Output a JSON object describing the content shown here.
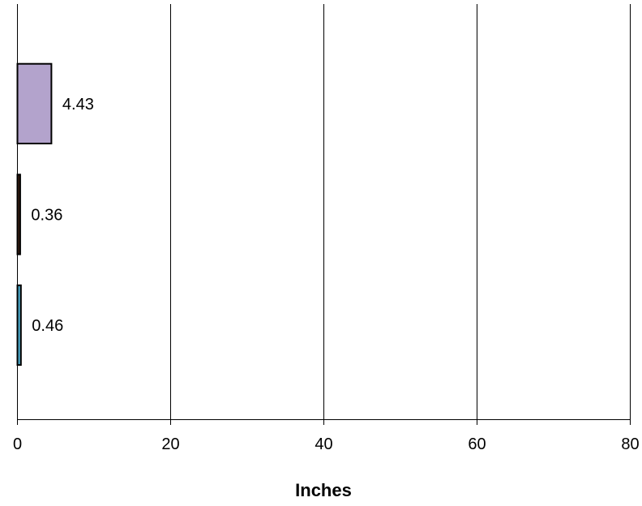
{
  "chart_data": {
    "type": "bar",
    "orientation": "horizontal",
    "title": "",
    "xlabel": "Inches",
    "ylabel": "",
    "xlim": [
      0,
      80
    ],
    "xticks": [
      0,
      20,
      40,
      60,
      80
    ],
    "xtick_labels": [
      "0",
      "20",
      "40",
      "60",
      "80"
    ],
    "grid": "vertical",
    "legend": "none",
    "bars": [
      {
        "value": 4.43,
        "label": "4.43",
        "color": "#b3a3cc"
      },
      {
        "value": 0.36,
        "label": "0.36",
        "color": "#3d1f14"
      },
      {
        "value": 0.46,
        "label": "0.46",
        "color": "#4aa8c8"
      }
    ]
  }
}
